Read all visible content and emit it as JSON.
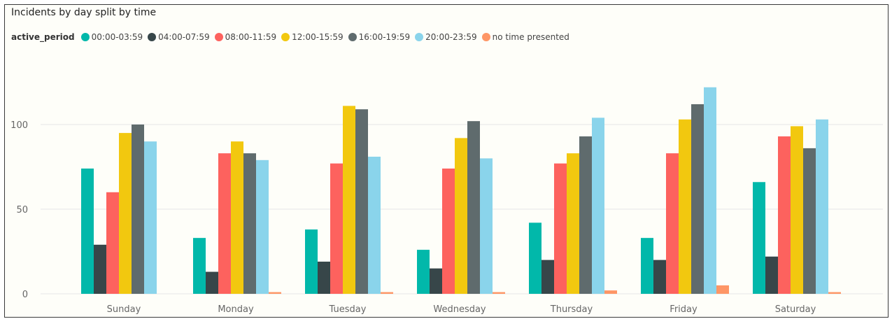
{
  "chart_data": {
    "type": "bar",
    "title": "Incidents by day split by time",
    "legend_title": "active_period",
    "legend_position": "top-left",
    "grid": true,
    "ylim": [
      0,
      125
    ],
    "yticks": [
      0,
      50,
      100
    ],
    "categories": [
      "Sunday",
      "Monday",
      "Tuesday",
      "Wednesday",
      "Thursday",
      "Friday",
      "Saturday"
    ],
    "series": [
      {
        "name": "00:00-03:59",
        "color": "#01b8aa",
        "values": [
          74,
          33,
          38,
          26,
          42,
          33,
          66
        ]
      },
      {
        "name": "04:00-07:59",
        "color": "#374649",
        "values": [
          29,
          13,
          19,
          15,
          20,
          20,
          22
        ]
      },
      {
        "name": "08:00-11:59",
        "color": "#fd625e",
        "values": [
          60,
          83,
          77,
          74,
          77,
          83,
          93
        ]
      },
      {
        "name": "12:00-15:59",
        "color": "#f2c80f",
        "values": [
          95,
          90,
          111,
          92,
          83,
          103,
          99
        ]
      },
      {
        "name": "16:00-19:59",
        "color": "#5f6b6d",
        "values": [
          100,
          83,
          109,
          102,
          93,
          112,
          86
        ]
      },
      {
        "name": "20:00-23:59",
        "color": "#8ad4eb",
        "values": [
          90,
          79,
          81,
          80,
          104,
          122,
          103
        ]
      },
      {
        "name": "no time presented",
        "color": "#fe9666",
        "values": [
          0,
          1,
          1,
          1,
          2,
          5,
          1
        ]
      }
    ]
  }
}
